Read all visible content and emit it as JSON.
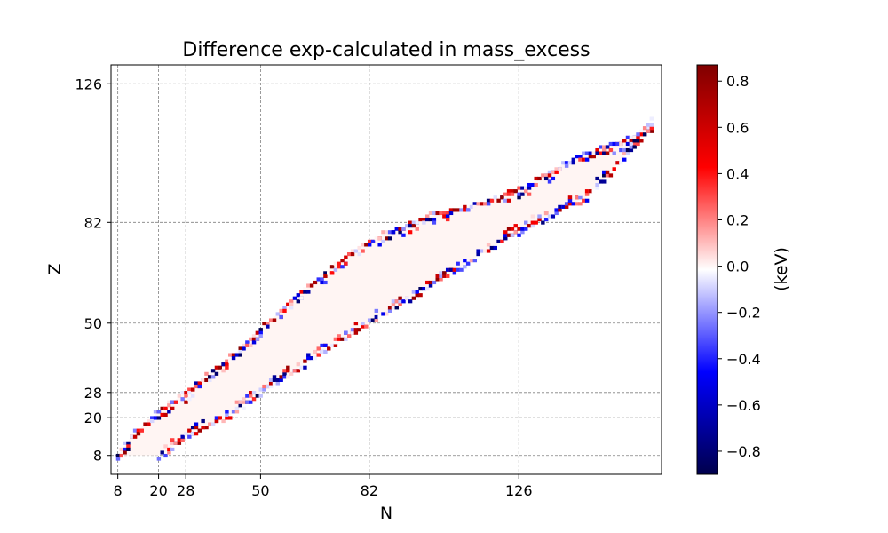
{
  "chart_data": {
    "type": "heatmap",
    "title": "Difference exp-calculated in mass_excess",
    "xlabel": "N",
    "ylabel": "Z",
    "xlim": [
      6,
      168
    ],
    "ylim": [
      2,
      132
    ],
    "x_ticks": [
      "8",
      "20",
      "28",
      "50",
      "82",
      "126"
    ],
    "x_tick_values": [
      8,
      20,
      28,
      50,
      82,
      126
    ],
    "y_ticks": [
      "8",
      "20",
      "28",
      "50",
      "82",
      "126"
    ],
    "y_tick_values": [
      8,
      20,
      28,
      50,
      82,
      126
    ],
    "grid": true,
    "colorbar": {
      "label": "(keV)",
      "range": [
        -0.9,
        0.87
      ],
      "ticks": [
        "0.8",
        "0.6",
        "0.4",
        "0.2",
        "0.0",
        "−0.2",
        "−0.4",
        "−0.6",
        "−0.8"
      ],
      "tick_values": [
        0.8,
        0.6,
        0.4,
        0.2,
        0.0,
        -0.2,
        -0.4,
        -0.6,
        -0.8
      ],
      "colormap": "seismic",
      "colors": [
        "#00004c",
        "#0000ff",
        "#ffffff",
        "#ff0000",
        "#800000"
      ]
    },
    "band": {
      "description_free": true,
      "lower_edge": [
        [
          20,
          8
        ],
        [
          22,
          9
        ],
        [
          28,
          14
        ],
        [
          40,
          20
        ],
        [
          50,
          28
        ],
        [
          60,
          35
        ],
        [
          70,
          42
        ],
        [
          82,
          50
        ],
        [
          100,
          62
        ],
        [
          115,
          72
        ],
        [
          126,
          79
        ],
        [
          140,
          87
        ],
        [
          146,
          90
        ],
        [
          165,
          112
        ]
      ],
      "upper_edge": [
        [
          8,
          8
        ],
        [
          12,
          14
        ],
        [
          20,
          22
        ],
        [
          28,
          28
        ],
        [
          40,
          38
        ],
        [
          50,
          48
        ],
        [
          60,
          58
        ],
        [
          70,
          67
        ],
        [
          82,
          76
        ],
        [
          100,
          84
        ],
        [
          115,
          88
        ],
        [
          126,
          92
        ],
        [
          140,
          101
        ],
        [
          165,
          112
        ]
      ]
    }
  }
}
